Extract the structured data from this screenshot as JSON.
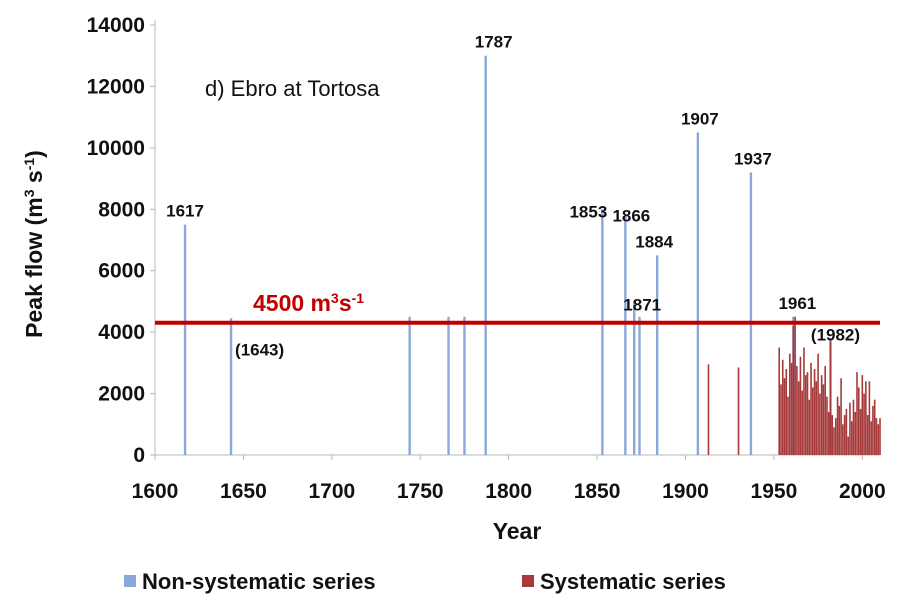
{
  "chart_data": {
    "type": "bar",
    "title": "d) Ebro at Tortosa",
    "xlabel": "Year",
    "ylabel": "Peak flow (m",
    "ylabel_sup": "3",
    "ylabel_mid": " s",
    "ylabel_sup2": "-1",
    "ylabel_end": ")",
    "xlim": [
      1600,
      2010
    ],
    "ylim": [
      0,
      14000
    ],
    "xticks": [
      "1600",
      "1650",
      "1700",
      "1750",
      "1800",
      "1850",
      "1900",
      "1950",
      "2000"
    ],
    "yticks": [
      "0",
      "2000",
      "4000",
      "6000",
      "8000",
      "10000",
      "12000",
      "14000"
    ],
    "grid": false,
    "legend_position": "bottom",
    "threshold": {
      "value": 4500,
      "label_main": "4500 m",
      "label_sup": "3",
      "label_mid": "s",
      "label_sup2": "-1",
      "color": "#c00000"
    },
    "series": [
      {
        "name": "Non-systematic series",
        "color": "#8aa8d8",
        "x": [
          1617,
          1643,
          1744,
          1766,
          1775,
          1787,
          1853,
          1866,
          1871,
          1874,
          1884,
          1907,
          1937,
          1961,
          1982
        ],
        "values": [
          7500,
          4450,
          4500,
          4500,
          4500,
          13000,
          8000,
          7800,
          5000,
          4500,
          6500,
          10500,
          9200,
          4500,
          3800
        ]
      },
      {
        "name": "Systematic series",
        "color": "#a63a3a",
        "x": [
          1913,
          1930,
          1953,
          1954,
          1955,
          1956,
          1957,
          1958,
          1959,
          1960,
          1961,
          1962,
          1963,
          1964,
          1965,
          1966,
          1967,
          1968,
          1969,
          1970,
          1971,
          1972,
          1973,
          1974,
          1975,
          1976,
          1977,
          1978,
          1979,
          1980,
          1981,
          1982,
          1983,
          1984,
          1985,
          1986,
          1987,
          1988,
          1989,
          1990,
          1991,
          1992,
          1993,
          1994,
          1995,
          1996,
          1997,
          1998,
          1999,
          2000,
          2001,
          2002,
          2003,
          2004,
          2005,
          2006,
          2007,
          2008,
          2009,
          2010
        ],
        "values": [
          2950,
          2850,
          3500,
          2300,
          3100,
          2500,
          2800,
          1900,
          3300,
          3000,
          4200,
          4500,
          2900,
          2400,
          3200,
          2100,
          3500,
          2600,
          2700,
          1800,
          3000,
          2200,
          2800,
          2400,
          3300,
          2000,
          2600,
          2300,
          2900,
          1900,
          1400,
          3700,
          1300,
          900,
          1200,
          1900,
          1600,
          2500,
          1000,
          1300,
          1500,
          600,
          1700,
          1100,
          1800,
          1400,
          2700,
          2200,
          1500,
          2600,
          2000,
          2400,
          1300,
          2400,
          1100,
          1600,
          1800,
          1200,
          1000,
          1200
        ]
      }
    ],
    "annotations": [
      {
        "text": "1617",
        "x": 1617,
        "y": 7500
      },
      {
        "text": "(1643)",
        "x": 1643,
        "y": 4450
      },
      {
        "text": "1787",
        "x": 1787,
        "y": 13000
      },
      {
        "text": "1853",
        "x": 1853,
        "y": 8000
      },
      {
        "text": "1866",
        "x": 1866,
        "y": 7800
      },
      {
        "text": "1871",
        "x": 1871,
        "y": 5000
      },
      {
        "text": "1884",
        "x": 1884,
        "y": 6500
      },
      {
        "text": "1907",
        "x": 1907,
        "y": 10500
      },
      {
        "text": "1937",
        "x": 1937,
        "y": 9200
      },
      {
        "text": "1961",
        "x": 1961,
        "y": 4500
      },
      {
        "text": "(1982)",
        "x": 1982,
        "y": 3800
      }
    ]
  }
}
